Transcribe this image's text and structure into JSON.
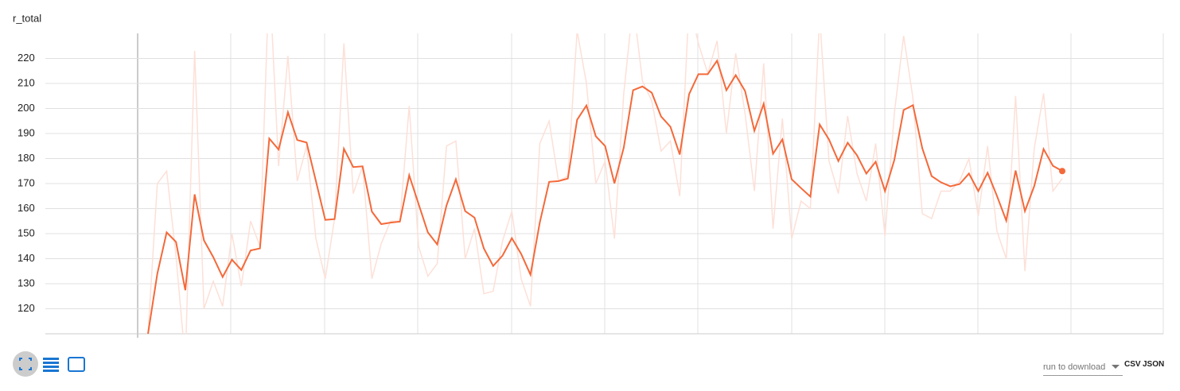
{
  "chart_data": {
    "type": "line",
    "title": "r_total",
    "ylim": [
      110,
      230
    ],
    "yticks": [
      120,
      130,
      140,
      150,
      160,
      170,
      180,
      190,
      200,
      210,
      220
    ],
    "grid": true,
    "series": [
      {
        "color": "#fde0d7",
        "values": [
          110,
          170,
          175,
          141,
          99,
          223,
          120,
          131,
          121,
          150,
          129,
          155,
          145,
          254,
          177,
          221,
          171,
          185,
          148,
          132,
          156,
          226,
          166,
          177,
          132,
          146,
          155,
          155,
          201,
          145,
          133,
          138,
          185,
          187,
          140,
          152,
          126,
          127,
          147,
          159,
          132,
          121,
          186,
          195,
          171,
          173,
          231,
          210,
          170,
          179,
          148,
          206,
          242,
          211,
          203,
          183,
          187,
          165,
          242,
          226,
          214,
          227,
          190,
          222,
          198,
          167,
          218,
          152,
          196,
          148,
          163,
          160,
          237,
          179,
          166,
          197,
          174,
          163,
          186,
          149,
          198,
          229,
          204,
          158,
          156,
          167,
          167,
          171,
          180,
          157,
          185,
          151,
          140,
          205,
          135,
          184,
          206,
          167,
          172
        ]
      },
      {
        "color": "#f4693a",
        "values": [
          110,
          134,
          150.5,
          146.7,
          127.4,
          165.7,
          147.3,
          140.6,
          132.7,
          139.6,
          135.5,
          143.3,
          144.1,
          188,
          183.6,
          198.5,
          187.4,
          186.4,
          171,
          155.5,
          155.8,
          183.9,
          176.6,
          176.9,
          158.8,
          153.8,
          154.4,
          154.8,
          173.3,
          161.9,
          150.5,
          145.7,
          161.3,
          171.7,
          159,
          156.4,
          144.1,
          137.1,
          141.2,
          148.2,
          141.9,
          133.6,
          154.5,
          170.7,
          171,
          172,
          195.5,
          201.2,
          188.9,
          185,
          170.1,
          184.4,
          207.3,
          208.8,
          206.3,
          196.8,
          192.7,
          181.6,
          205.7,
          213.7,
          213.7,
          219.1,
          207.3,
          213.3,
          207,
          191.1,
          201.9,
          181.9,
          187.6,
          171.7,
          168.2,
          164.8,
          193.6,
          187.6,
          179,
          186.3,
          181.3,
          174,
          178.7,
          167,
          179.4,
          199.4,
          201.3,
          184.1,
          173,
          170.5,
          168.9,
          169.8,
          174,
          167,
          174.3,
          165.1,
          155.2,
          175.2,
          159,
          169,
          183.8,
          177.1,
          175
        ]
      }
    ]
  },
  "ui": {
    "download_label": "run to download",
    "csv": "CSV",
    "json": "JSON"
  }
}
